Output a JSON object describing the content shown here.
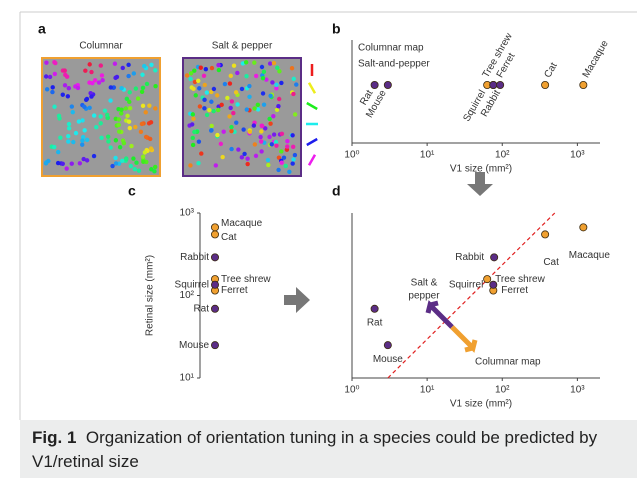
{
  "chart_data": [
    {
      "type": "map",
      "panel": "a",
      "titles": [
        "Columnar",
        "Salt & pepper"
      ],
      "colors": [
        "#f0a030",
        "#5b2d86"
      ]
    },
    {
      "type": "strip-x",
      "panel": "b",
      "xlabel": "V1 size (mm²)",
      "log_x": true,
      "xlim": [
        1,
        2000
      ],
      "xticks": [
        {
          "value": 1,
          "label": "10⁰"
        },
        {
          "value": 10,
          "label": "10¹"
        },
        {
          "value": 100,
          "label": "10²"
        },
        {
          "value": 1000,
          "label": "10³"
        }
      ],
      "legend": "top-left",
      "series": [
        {
          "name": "Columnar map",
          "color": "#f0a030",
          "labels": [
            "Tree shrew",
            "Ferret",
            "Cat",
            "Macaque"
          ],
          "x": [
            63,
            76,
            372,
            1200
          ]
        },
        {
          "name": "Salt-and-pepper",
          "color": "#5b2d86",
          "labels": [
            "Rat",
            "Mouse",
            "Squirrel",
            "Rabbit"
          ],
          "x": [
            2,
            3,
            76,
            78
          ]
        }
      ]
    },
    {
      "type": "strip-y",
      "panel": "c",
      "ylabel": "Retinal size (mm²)",
      "log_y": true,
      "ylim": [
        10,
        1000
      ],
      "yticks": [
        {
          "value": 10,
          "label": "10¹"
        },
        {
          "value": 100,
          "label": "10²"
        },
        {
          "value": 1000,
          "label": "10³"
        }
      ],
      "series": [
        {
          "color": "#f0a030",
          "labels": [
            "Macaque",
            "Cat",
            "Tree shrew",
            "Ferret"
          ],
          "values": [
            670,
            550,
            158,
            115
          ]
        },
        {
          "color": "#5b2d86",
          "labels": [
            "Rabbit",
            "Squirrel",
            "Rat",
            "Mouse"
          ],
          "values": [
            290,
            135,
            69,
            25
          ]
        }
      ]
    },
    {
      "type": "scatter",
      "panel": "d",
      "xlabel": "V1 size (mm²)",
      "log_x": true,
      "log_y": true,
      "xlim": [
        1,
        2000
      ],
      "ylim": [
        10,
        1000
      ],
      "xticks": [
        {
          "value": 1,
          "label": "10⁰"
        },
        {
          "value": 10,
          "label": "10¹"
        },
        {
          "value": 100,
          "label": "10²"
        },
        {
          "value": 1000,
          "label": "10³"
        }
      ],
      "series": [
        {
          "color": "#f0a030",
          "labels": [
            "Cat",
            "Macaque",
            "Tree shrew",
            "Ferret"
          ],
          "x": [
            372,
            1200,
            63,
            76
          ],
          "y": [
            550,
            670,
            158,
            115
          ]
        },
        {
          "color": "#5b2d86",
          "labels": [
            "Rabbit",
            "Squirrel",
            "Rat",
            "Mouse"
          ],
          "x": [
            78,
            76,
            2,
            3
          ],
          "y": [
            290,
            135,
            69,
            25
          ]
        }
      ],
      "threshold_line": {
        "color": "#e02020",
        "x": [
          3,
          500
        ],
        "y": [
          10,
          1000
        ]
      },
      "salt_pepper_label": [
        "Salt &",
        "pepper"
      ],
      "columnar_label": "Columnar map"
    }
  ],
  "caption": {
    "label": "Fig. 1",
    "text": "Organization of orientation tuning in a species could be predicted by V1/retinal size"
  }
}
